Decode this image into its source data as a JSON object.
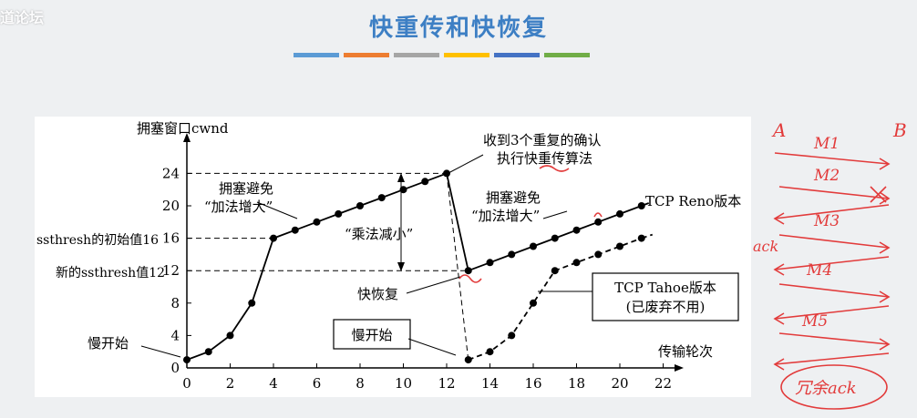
{
  "watermark": "道论坛",
  "title": "快重传和快恢复",
  "title_bar_colors": [
    "#5b9bd5",
    "#ed7d31",
    "#a5a5a5",
    "#ffc000",
    "#4472c4",
    "#70ad47"
  ],
  "chart_data": {
    "type": "line",
    "ylabel": "拥塞窗口cwnd",
    "xlabel": "传输轮次",
    "x_ticks": [
      0,
      2,
      4,
      6,
      8,
      10,
      12,
      14,
      16,
      18,
      20,
      22
    ],
    "y_ticks": [
      0,
      4,
      8,
      12,
      16,
      20,
      24
    ],
    "xlim": [
      0,
      22
    ],
    "ylim": [
      0,
      24
    ],
    "series": [
      {
        "name": "TCP Reno版本",
        "style": "solid",
        "points": [
          [
            0,
            1
          ],
          [
            1,
            2
          ],
          [
            2,
            4
          ],
          [
            3,
            8
          ],
          [
            4,
            16
          ],
          [
            5,
            17
          ],
          [
            6,
            18
          ],
          [
            7,
            19
          ],
          [
            8,
            20
          ],
          [
            9,
            21
          ],
          [
            10,
            22
          ],
          [
            11,
            23
          ],
          [
            12,
            24
          ],
          [
            13,
            12
          ],
          [
            14,
            13
          ],
          [
            15,
            14
          ],
          [
            16,
            15
          ],
          [
            17,
            16
          ],
          [
            18,
            17
          ],
          [
            19,
            18
          ],
          [
            20,
            19
          ],
          [
            21,
            20
          ]
        ]
      },
      {
        "name": "TCP Tahoe版本（已废弃不用）",
        "style": "dashed",
        "points": [
          [
            13,
            1
          ],
          [
            14,
            2
          ],
          [
            15,
            4
          ],
          [
            16,
            8
          ],
          [
            17,
            12
          ],
          [
            18,
            13
          ],
          [
            19,
            14
          ],
          [
            20,
            15
          ],
          [
            21,
            16
          ]
        ]
      }
    ],
    "annotations": {
      "slow_start": "慢开始",
      "ssthresh_initial": "ssthresh的初始值16",
      "ssthresh_new": "新的ssthresh值12",
      "ca1_line1": "拥塞避免",
      "ca1_line2": "“加法增大”",
      "ca2_line1": "拥塞避免",
      "ca2_line2": "“加法增大”",
      "md": "“乘法减小”",
      "fast_recovery": "快恢复",
      "dup_ack_line1": "收到3个重复的确认",
      "dup_ack_line2": "执行快重传算法",
      "reno": "TCP Reno版本",
      "tahoe_line1": "TCP Tahoe版本",
      "tahoe_line2": "(已废弃不用)",
      "slow_start_box": "慢开始"
    }
  },
  "handwriting": {
    "A": "A",
    "B": "B",
    "m1": "M1",
    "m2": "M2",
    "m3": "M3",
    "m4": "M4",
    "m5": "M5",
    "ack": "ack",
    "bottom": "冗余ack"
  }
}
